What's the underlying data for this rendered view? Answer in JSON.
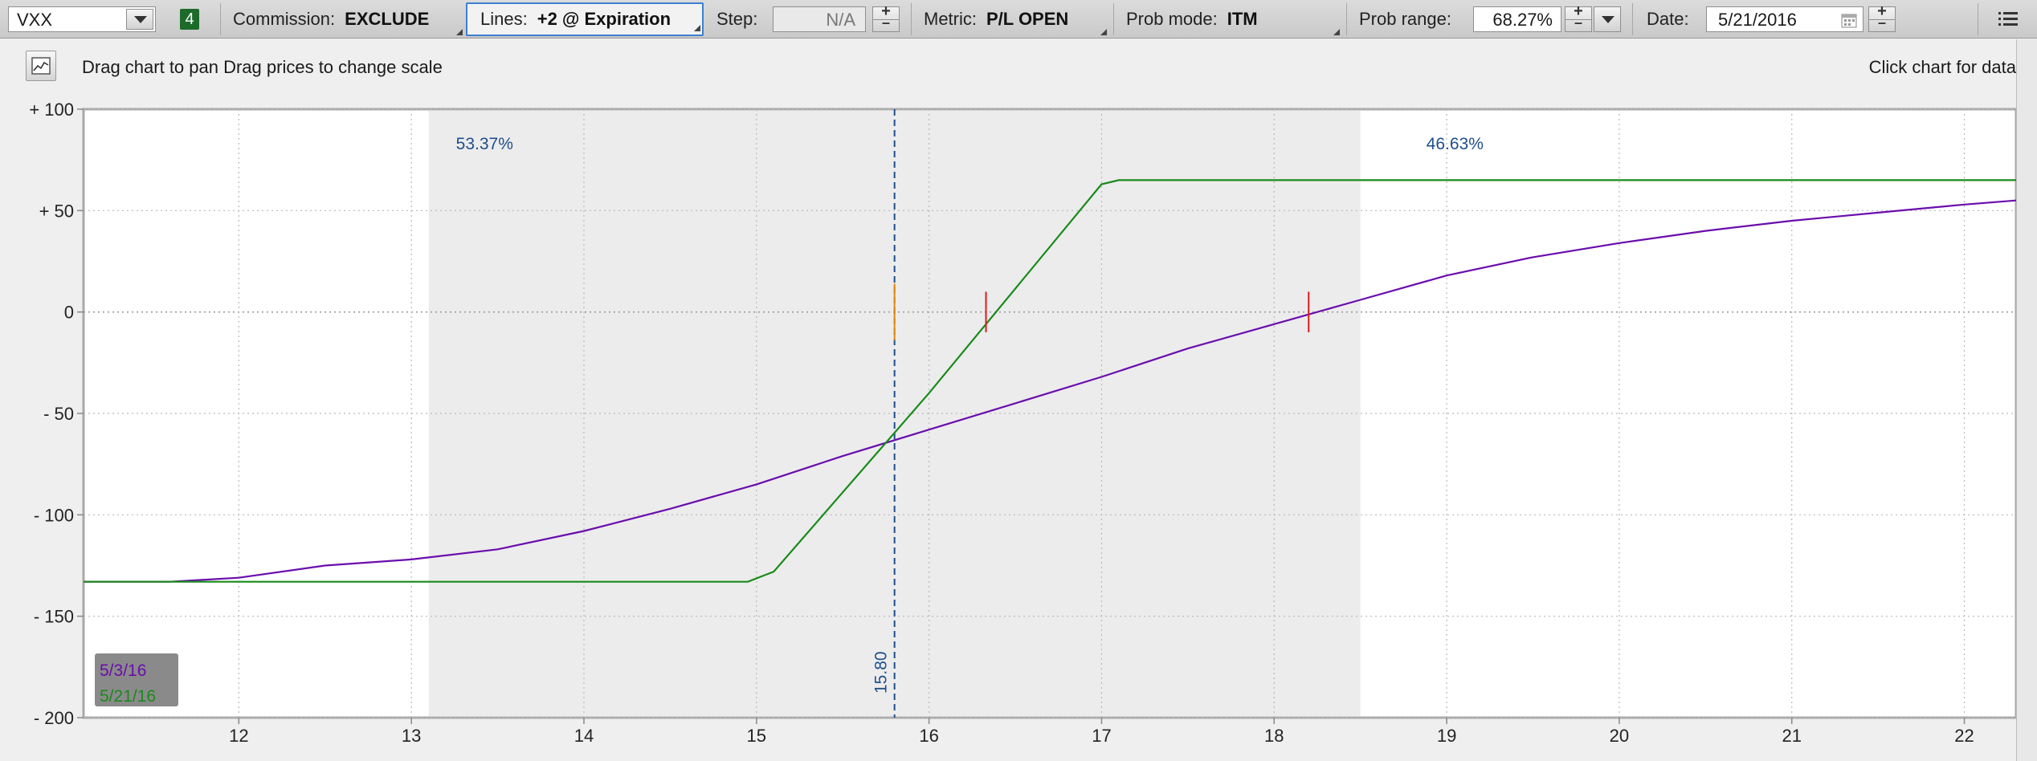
{
  "toolbar": {
    "symbol": "VXX",
    "link_badge": "4",
    "commission_label": "Commission:",
    "commission_value": "EXCLUDE",
    "lines_label": "Lines:",
    "lines_value": "+2 @ Expiration",
    "step_label": "Step:",
    "step_value": "N/A",
    "metric_label": "Metric:",
    "metric_value": "P/L OPEN",
    "probmode_label": "Prob mode:",
    "probmode_value": "ITM",
    "probrange_label": "Prob range:",
    "probrange_value": "68.27%",
    "date_label": "Date:",
    "date_value": "5/21/2016"
  },
  "subbar": {
    "hint": "Drag chart to pan Drag prices to change scale",
    "click_hint": "Click chart for data"
  },
  "colors": {
    "series_1": "#6a0dad",
    "series_2": "#1a8a1a",
    "marker": "#e0191b",
    "price_line": "#1f4e8c",
    "prob_band": "#ececec"
  },
  "chart_data": {
    "type": "line",
    "xlim": [
      11.1,
      22.3
    ],
    "ylim": [
      -200,
      100
    ],
    "x_ticks": [
      12,
      13,
      14,
      15,
      16,
      17,
      18,
      19,
      20,
      21,
      22
    ],
    "y_ticks": [
      100,
      50,
      0,
      -50,
      -100,
      -150,
      -200
    ],
    "y_tick_labels": [
      "+ 100",
      "+ 50",
      "0",
      "- 50",
      "- 100",
      "- 150",
      "- 200"
    ],
    "grid": true,
    "current_price": 15.8,
    "current_price_label": "15.80",
    "prob_range": [
      13.1,
      18.5
    ],
    "prob_left_label": "53.37%",
    "prob_right_label": "46.63%",
    "breakevens": [
      16.33,
      18.2
    ],
    "legend_placement": "bottom-left",
    "series": [
      {
        "name": "5/3/16",
        "color": "#6a0dad",
        "x": [
          11.1,
          11.6,
          12.0,
          12.5,
          13.0,
          13.5,
          14.0,
          14.5,
          15.0,
          15.5,
          16.0,
          16.5,
          17.0,
          17.5,
          18.0,
          18.5,
          19.0,
          19.5,
          20.0,
          20.5,
          21.0,
          21.5,
          22.0,
          22.3
        ],
        "values": [
          -133,
          -133,
          -131,
          -125,
          -122,
          -117,
          -108,
          -97,
          -85,
          -71,
          -58,
          -45,
          -32,
          -18,
          -6,
          6,
          18,
          27,
          34,
          40,
          45,
          49,
          53,
          55
        ]
      },
      {
        "name": "5/21/16",
        "color": "#1a8a1a",
        "x": [
          11.1,
          14.95,
          15.1,
          16.0,
          17.0,
          17.1,
          22.3
        ],
        "values": [
          -133,
          -133,
          -128,
          -40,
          63,
          65,
          65
        ]
      }
    ]
  }
}
